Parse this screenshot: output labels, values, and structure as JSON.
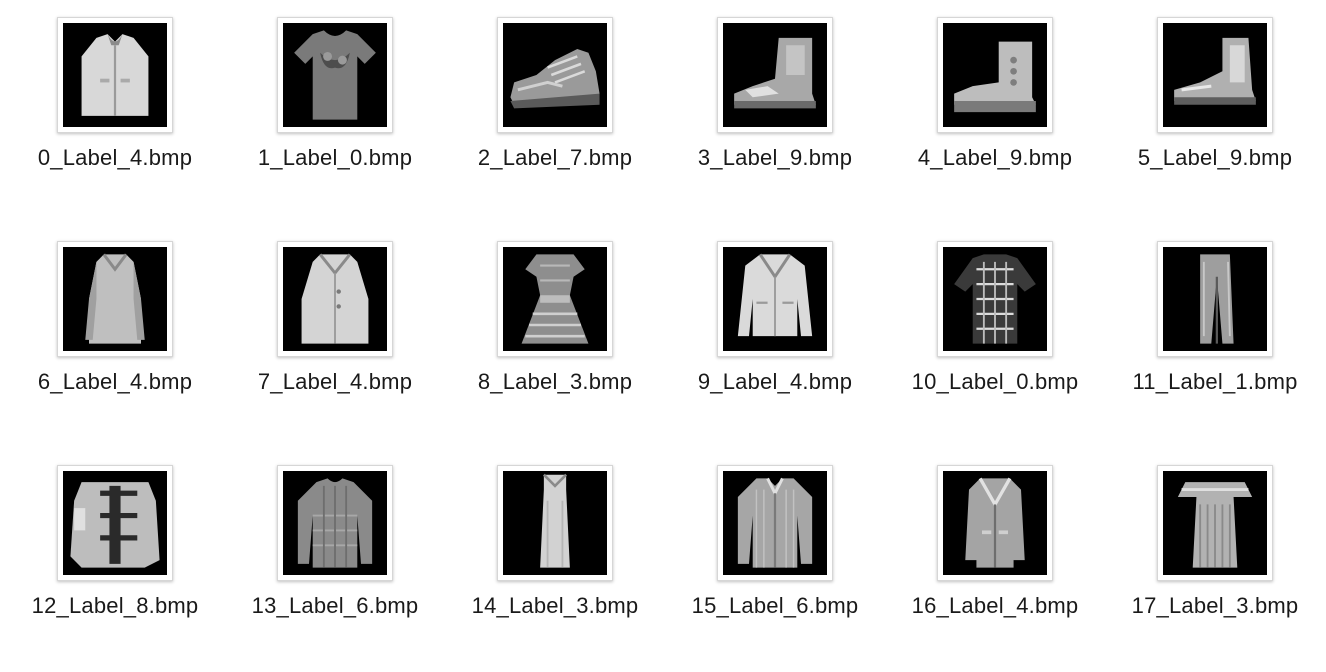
{
  "files": [
    {
      "name": "0_Label_4.bmp",
      "icon": "jacket-icon"
    },
    {
      "name": "1_Label_0.bmp",
      "icon": "tshirt-icon"
    },
    {
      "name": "2_Label_7.bmp",
      "icon": "sneaker-icon"
    },
    {
      "name": "3_Label_9.bmp",
      "icon": "ankle-boot-icon"
    },
    {
      "name": "4_Label_9.bmp",
      "icon": "ankle-boot-icon"
    },
    {
      "name": "5_Label_9.bmp",
      "icon": "ankle-boot-icon"
    },
    {
      "name": "6_Label_4.bmp",
      "icon": "coat-icon"
    },
    {
      "name": "7_Label_4.bmp",
      "icon": "coat-icon"
    },
    {
      "name": "8_Label_3.bmp",
      "icon": "dress-icon"
    },
    {
      "name": "9_Label_4.bmp",
      "icon": "coat-icon"
    },
    {
      "name": "10_Label_0.bmp",
      "icon": "tshirt-icon"
    },
    {
      "name": "11_Label_1.bmp",
      "icon": "trouser-icon"
    },
    {
      "name": "12_Label_8.bmp",
      "icon": "bag-icon"
    },
    {
      "name": "13_Label_6.bmp",
      "icon": "shirt-icon"
    },
    {
      "name": "14_Label_3.bmp",
      "icon": "dress-icon"
    },
    {
      "name": "15_Label_6.bmp",
      "icon": "shirt-icon"
    },
    {
      "name": "16_Label_4.bmp",
      "icon": "coat-icon"
    },
    {
      "name": "17_Label_3.bmp",
      "icon": "dress-icon"
    }
  ]
}
